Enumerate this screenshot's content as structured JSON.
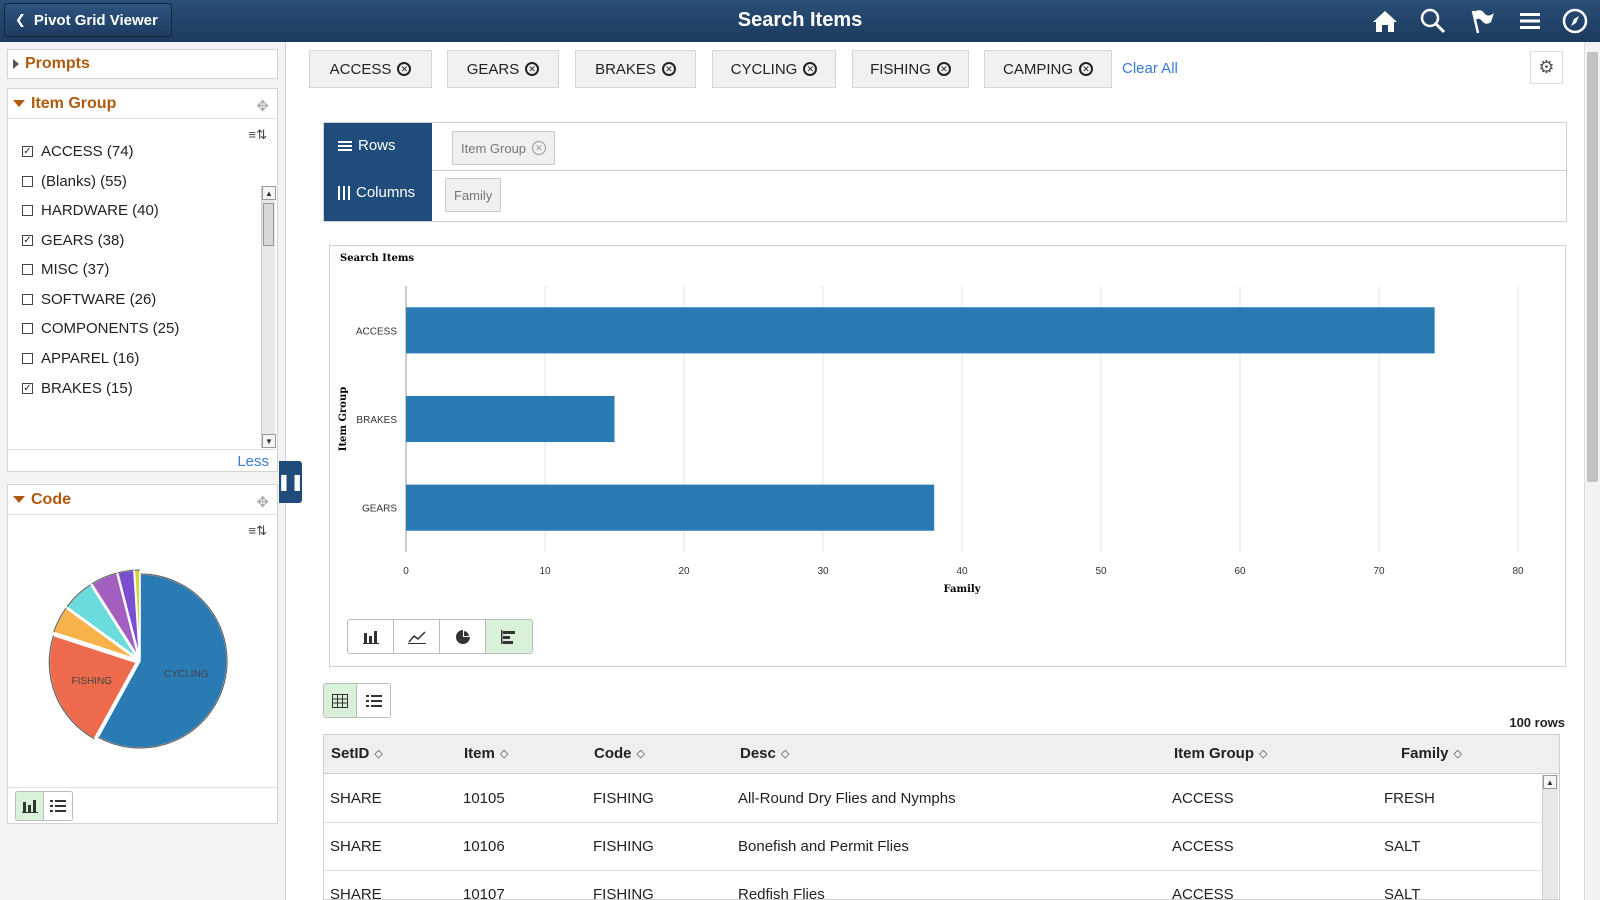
{
  "header": {
    "back_label": "Pivot Grid Viewer",
    "title": "Search Items",
    "icons": [
      "home-icon",
      "search-icon",
      "flag-icon",
      "menu-icon",
      "compass-icon"
    ]
  },
  "left": {
    "prompts_label": "Prompts",
    "item_group": {
      "label": "Item Group",
      "items": [
        {
          "label": "ACCESS (74)",
          "checked": true
        },
        {
          "label": "(Blanks) (55)",
          "checked": false
        },
        {
          "label": "HARDWARE (40)",
          "checked": false
        },
        {
          "label": "GEARS (38)",
          "checked": true
        },
        {
          "label": "MISC (37)",
          "checked": false
        },
        {
          "label": "SOFTWARE (26)",
          "checked": false
        },
        {
          "label": "COMPONENTS (25)",
          "checked": false
        },
        {
          "label": "APPAREL (16)",
          "checked": false
        },
        {
          "label": "BRAKES (15)",
          "checked": true
        }
      ],
      "less_label": "Less"
    },
    "code": {
      "label": "Code",
      "pie_labels": {
        "cycling": "CYCLING",
        "fishing": "FISHING"
      }
    }
  },
  "filters": {
    "chips": [
      "ACCESS",
      "GEARS",
      "BRAKES",
      "CYCLING",
      "FISHING",
      "CAMPING"
    ],
    "clear_all": "Clear All"
  },
  "pivot": {
    "rows_label": "Rows",
    "columns_label": "Columns",
    "row_field": "Item Group",
    "column_field": "Family"
  },
  "chart_data": {
    "type": "bar",
    "orientation": "horizontal",
    "title": "Search Items",
    "categories": [
      "ACCESS",
      "BRAKES",
      "GEARS"
    ],
    "values": [
      74,
      15,
      38
    ],
    "xlabel": "Family",
    "ylabel": "Item Group",
    "xlim": [
      0,
      80
    ],
    "xticks": [
      "0",
      "10",
      "20",
      "30",
      "40",
      "50",
      "60",
      "70",
      "80"
    ],
    "grid": true,
    "color": "#2a7ab4"
  },
  "pie_chart_data": {
    "type": "pie",
    "slices": [
      {
        "label": "CYCLING",
        "value": 58,
        "color": "#2a7ab4"
      },
      {
        "label": "FISHING",
        "value": 22,
        "color": "#ed6a4c"
      },
      {
        "label": "",
        "value": 5,
        "color": "#f7b24a"
      },
      {
        "label": "",
        "value": 6,
        "color": "#6adcdc"
      },
      {
        "label": "",
        "value": 5,
        "color": "#a35fbf"
      },
      {
        "label": "",
        "value": 3,
        "color": "#7a4fcf"
      },
      {
        "label": "",
        "value": 1,
        "color": "#d6d33a"
      }
    ]
  },
  "table": {
    "row_count": "100 rows",
    "columns": [
      "SetID",
      "Item",
      "Code",
      "Desc",
      "Item Group",
      "Family"
    ],
    "rows": [
      [
        "SHARE",
        "10105",
        "FISHING",
        "All-Round Dry Flies and Nymphs",
        "ACCESS",
        "FRESH"
      ],
      [
        "SHARE",
        "10106",
        "FISHING",
        "Bonefish and Permit Flies",
        "ACCESS",
        "SALT"
      ],
      [
        "SHARE",
        "10107",
        "FISHING",
        "Redfish Flies",
        "ACCESS",
        "SALT"
      ]
    ]
  }
}
